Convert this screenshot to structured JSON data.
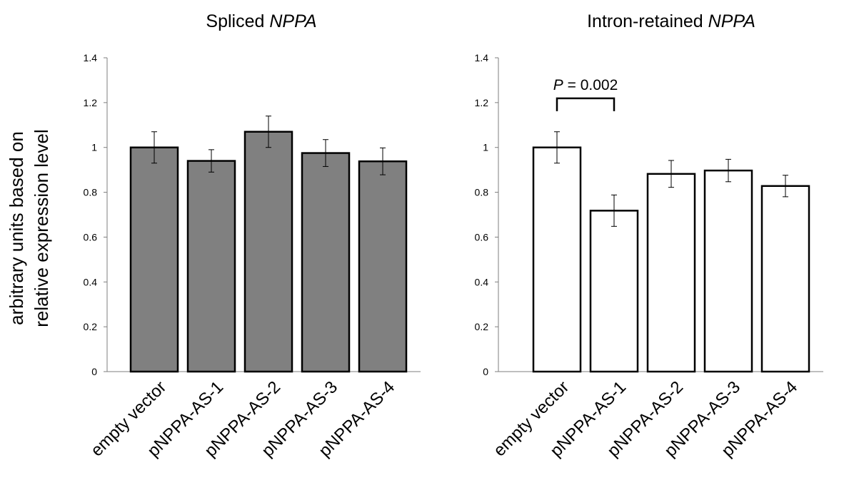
{
  "ylabel": [
    "arbitrary units based on",
    "relative expression level"
  ],
  "chart_data": [
    {
      "type": "bar",
      "title_prefix": "Spliced ",
      "title_italic": "NPPA",
      "categories": [
        "empty vector",
        "pNPPA-AS-1",
        "pNPPA-AS-2",
        "pNPPA-AS-3",
        "pNPPA-AS-4"
      ],
      "values": [
        1.0,
        0.94,
        1.07,
        0.975,
        0.938
      ],
      "errors": [
        0.07,
        0.05,
        0.07,
        0.06,
        0.06
      ],
      "ylim": [
        0,
        1.4
      ],
      "yticks": [
        "0",
        "0.2",
        "0.4",
        "0.6",
        "0.8",
        "1",
        "1.2",
        "1.4"
      ],
      "bar_color": "#808080",
      "annotations": []
    },
    {
      "type": "bar",
      "title_prefix": "Intron-retained ",
      "title_italic": "NPPA",
      "categories": [
        "empty vector",
        "pNPPA-AS-1",
        "pNPPA-AS-2",
        "pNPPA-AS-3",
        "pNPPA-AS-4"
      ],
      "values": [
        1.0,
        0.718,
        0.882,
        0.897,
        0.828
      ],
      "errors": [
        0.07,
        0.07,
        0.06,
        0.05,
        0.048
      ],
      "ylim": [
        0,
        1.4
      ],
      "yticks": [
        "0",
        "0.2",
        "0.4",
        "0.6",
        "0.8",
        "1",
        "1.2",
        "1.4"
      ],
      "bar_color": "#ffffff",
      "annotations": [
        {
          "from": 0,
          "to": 1,
          "y": 1.2,
          "label_italic": "P",
          "label_rest": " = 0.002"
        }
      ]
    }
  ]
}
